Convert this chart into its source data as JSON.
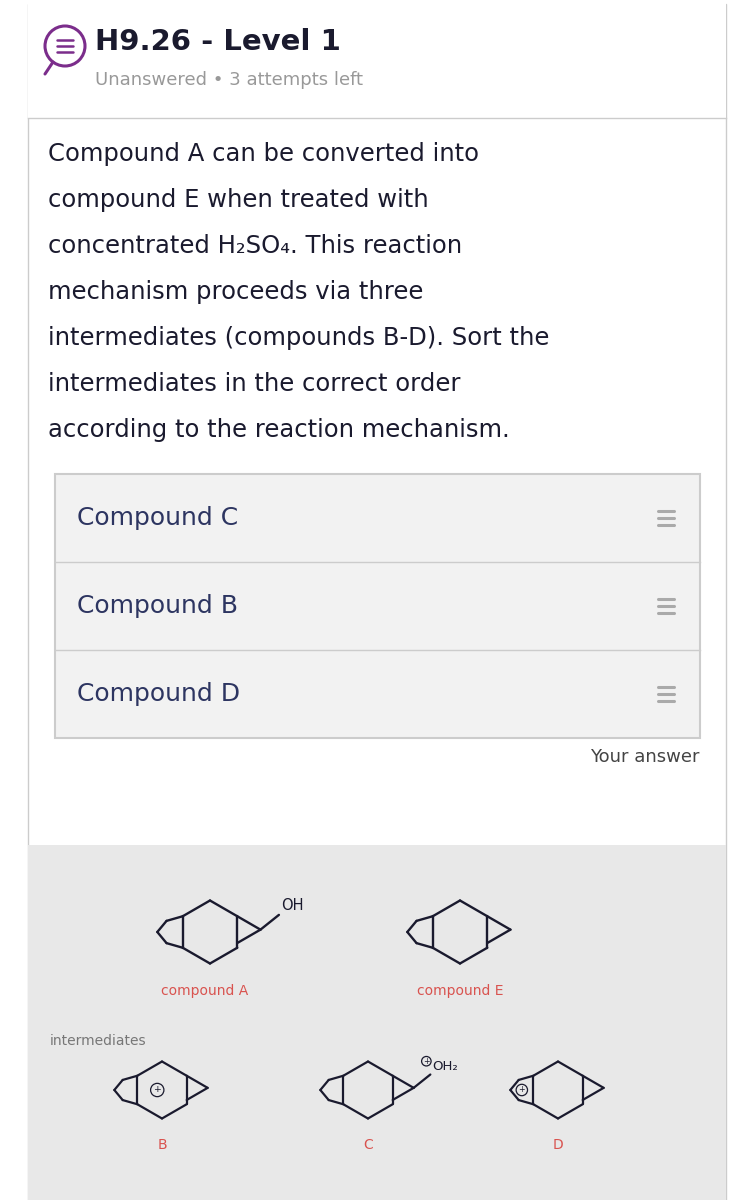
{
  "title": "H9.26 - Level 1",
  "subtitle": "Unanswered • 3 attempts left",
  "description_lines": [
    "Compound A can be converted into",
    "compound E when treated with",
    "concentrated H₂SO₄. This reaction",
    "mechanism proceeds via three",
    "intermediates (compounds B-D). Sort the",
    "intermediates in the correct order",
    "according to the reaction mechanism."
  ],
  "sort_items": [
    "Compound C",
    "Compound B",
    "Compound D"
  ],
  "your_answer_label": "Your answer",
  "bg_color": "#ffffff",
  "sort_bg": "#f2f2f2",
  "title_color": "#1a1a2e",
  "subtitle_color": "#999999",
  "desc_color": "#1a1a2e",
  "sort_text_color": "#2d3561",
  "icon_color": "#7b2d8b",
  "bottom_bg": "#e8e8e8",
  "compound_label_color": "#d9534f",
  "intermediate_label_color": "#777777",
  "line_color": "#1a1a2e"
}
